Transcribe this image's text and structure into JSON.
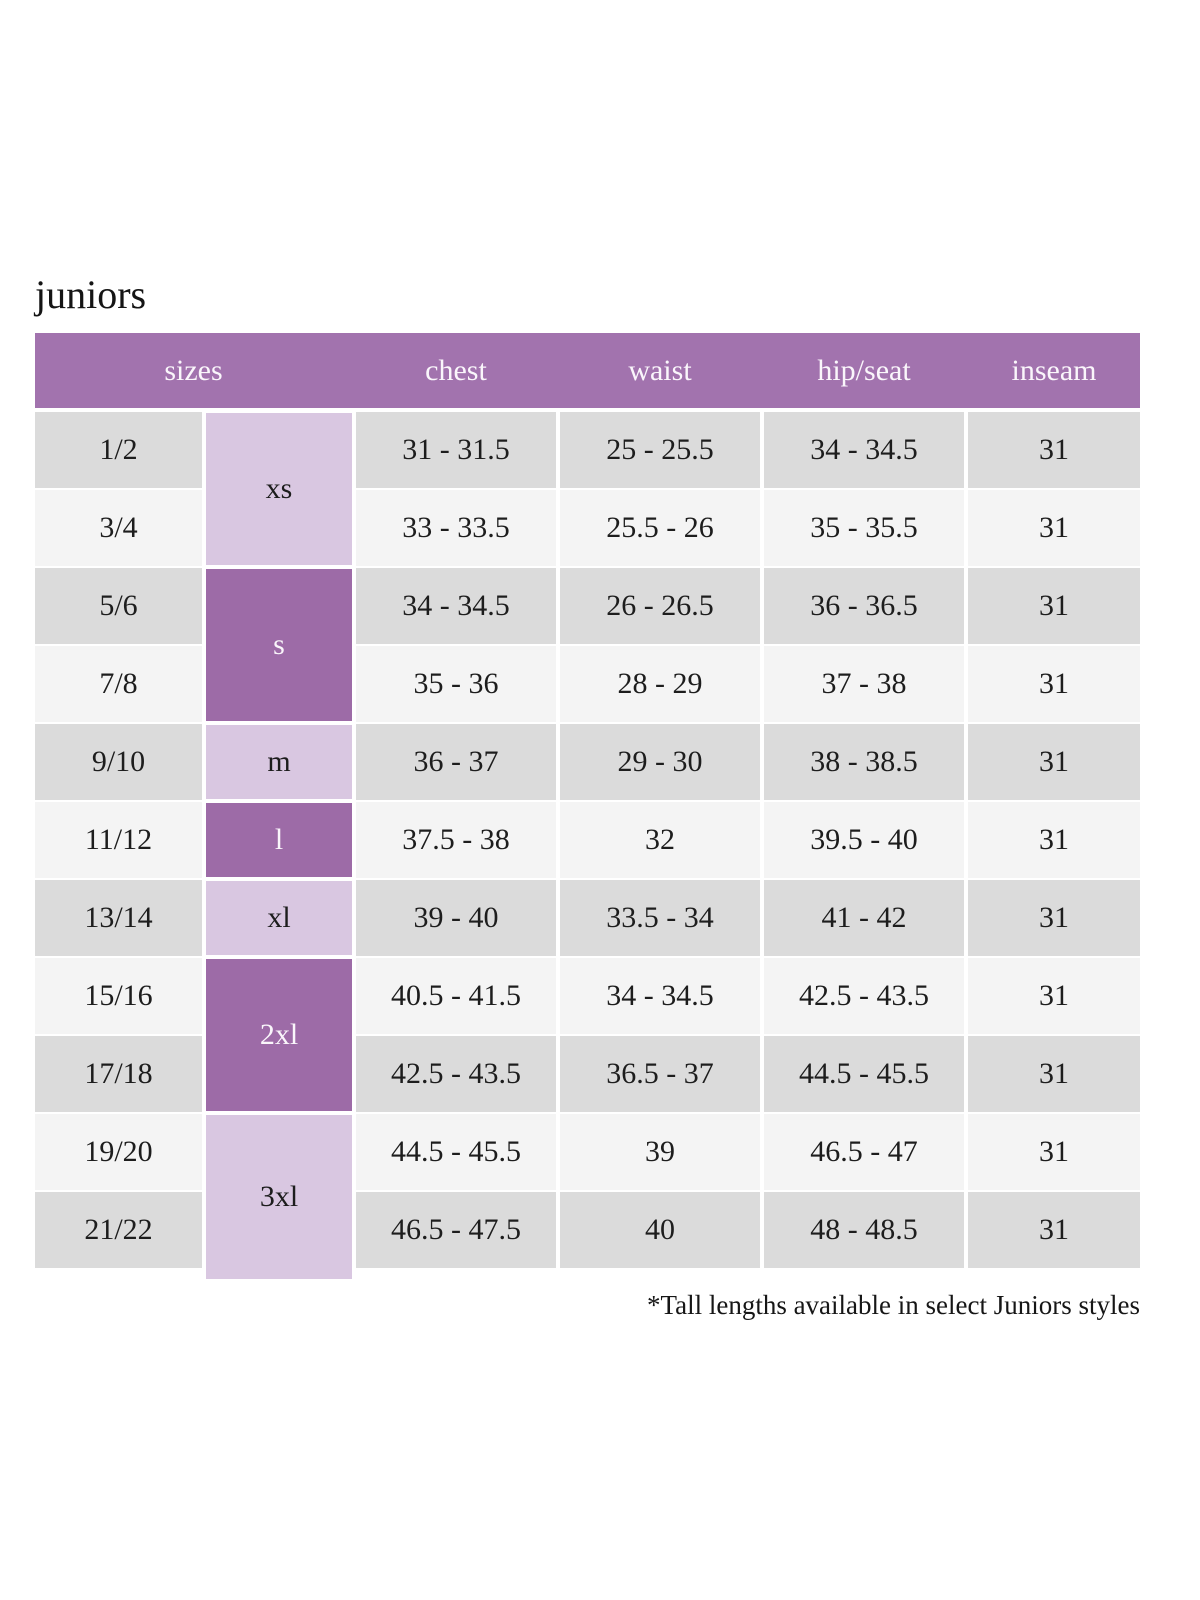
{
  "page": {
    "title": "juniors",
    "footnote": "*Tall lengths available in select Juniors styles"
  },
  "colors": {
    "header_bg": "#a273ae",
    "header_text": "#faf6fb",
    "size_dark_bg": "#9d6ba7",
    "size_light_bg": "#d9c7e1",
    "row_gray": "#dbdbdb",
    "row_light": "#f4f4f4",
    "body_text": "#1d1d1d"
  },
  "table": {
    "headers": [
      "sizes",
      "chest",
      "waist",
      "hip/seat",
      "inseam"
    ],
    "size_groups": [
      {
        "label": "xs",
        "rows": [
          0,
          1
        ],
        "shade": "light"
      },
      {
        "label": "s",
        "rows": [
          2,
          3
        ],
        "shade": "dark"
      },
      {
        "label": "m",
        "rows": [
          4
        ],
        "shade": "light"
      },
      {
        "label": "l",
        "rows": [
          5
        ],
        "shade": "dark"
      },
      {
        "label": "xl",
        "rows": [
          6
        ],
        "shade": "light"
      },
      {
        "label": "2xl",
        "rows": [
          7,
          8
        ],
        "shade": "dark"
      },
      {
        "label": "3xl",
        "rows": [
          9,
          10
        ],
        "shade": "light",
        "extends_bottom": true
      }
    ],
    "rows": [
      {
        "size": "1/2",
        "chest": "31 - 31.5",
        "waist": "25 - 25.5",
        "hip_seat": "34 - 34.5",
        "inseam": "31"
      },
      {
        "size": "3/4",
        "chest": "33 - 33.5",
        "waist": "25.5 - 26",
        "hip_seat": "35 - 35.5",
        "inseam": "31"
      },
      {
        "size": "5/6",
        "chest": "34 - 34.5",
        "waist": "26 - 26.5",
        "hip_seat": "36 - 36.5",
        "inseam": "31"
      },
      {
        "size": "7/8",
        "chest": "35 - 36",
        "waist": "28 - 29",
        "hip_seat": "37 - 38",
        "inseam": "31"
      },
      {
        "size": "9/10",
        "chest": "36 - 37",
        "waist": "29 - 30",
        "hip_seat": "38 - 38.5",
        "inseam": "31"
      },
      {
        "size": "11/12",
        "chest": "37.5 - 38",
        "waist": "32",
        "hip_seat": "39.5 - 40",
        "inseam": "31"
      },
      {
        "size": "13/14",
        "chest": "39 - 40",
        "waist": "33.5 - 34",
        "hip_seat": "41 - 42",
        "inseam": "31"
      },
      {
        "size": "15/16",
        "chest": "40.5 - 41.5",
        "waist": "34 - 34.5",
        "hip_seat": "42.5 - 43.5",
        "inseam": "31"
      },
      {
        "size": "17/18",
        "chest": "42.5 - 43.5",
        "waist": "36.5 - 37",
        "hip_seat": "44.5 - 45.5",
        "inseam": "31"
      },
      {
        "size": "19/20",
        "chest": "44.5 - 45.5",
        "waist": "39",
        "hip_seat": "46.5 - 47",
        "inseam": "31"
      },
      {
        "size": "21/22",
        "chest": "46.5 - 47.5",
        "waist": "40",
        "hip_seat": "48 - 48.5",
        "inseam": "31"
      }
    ]
  }
}
